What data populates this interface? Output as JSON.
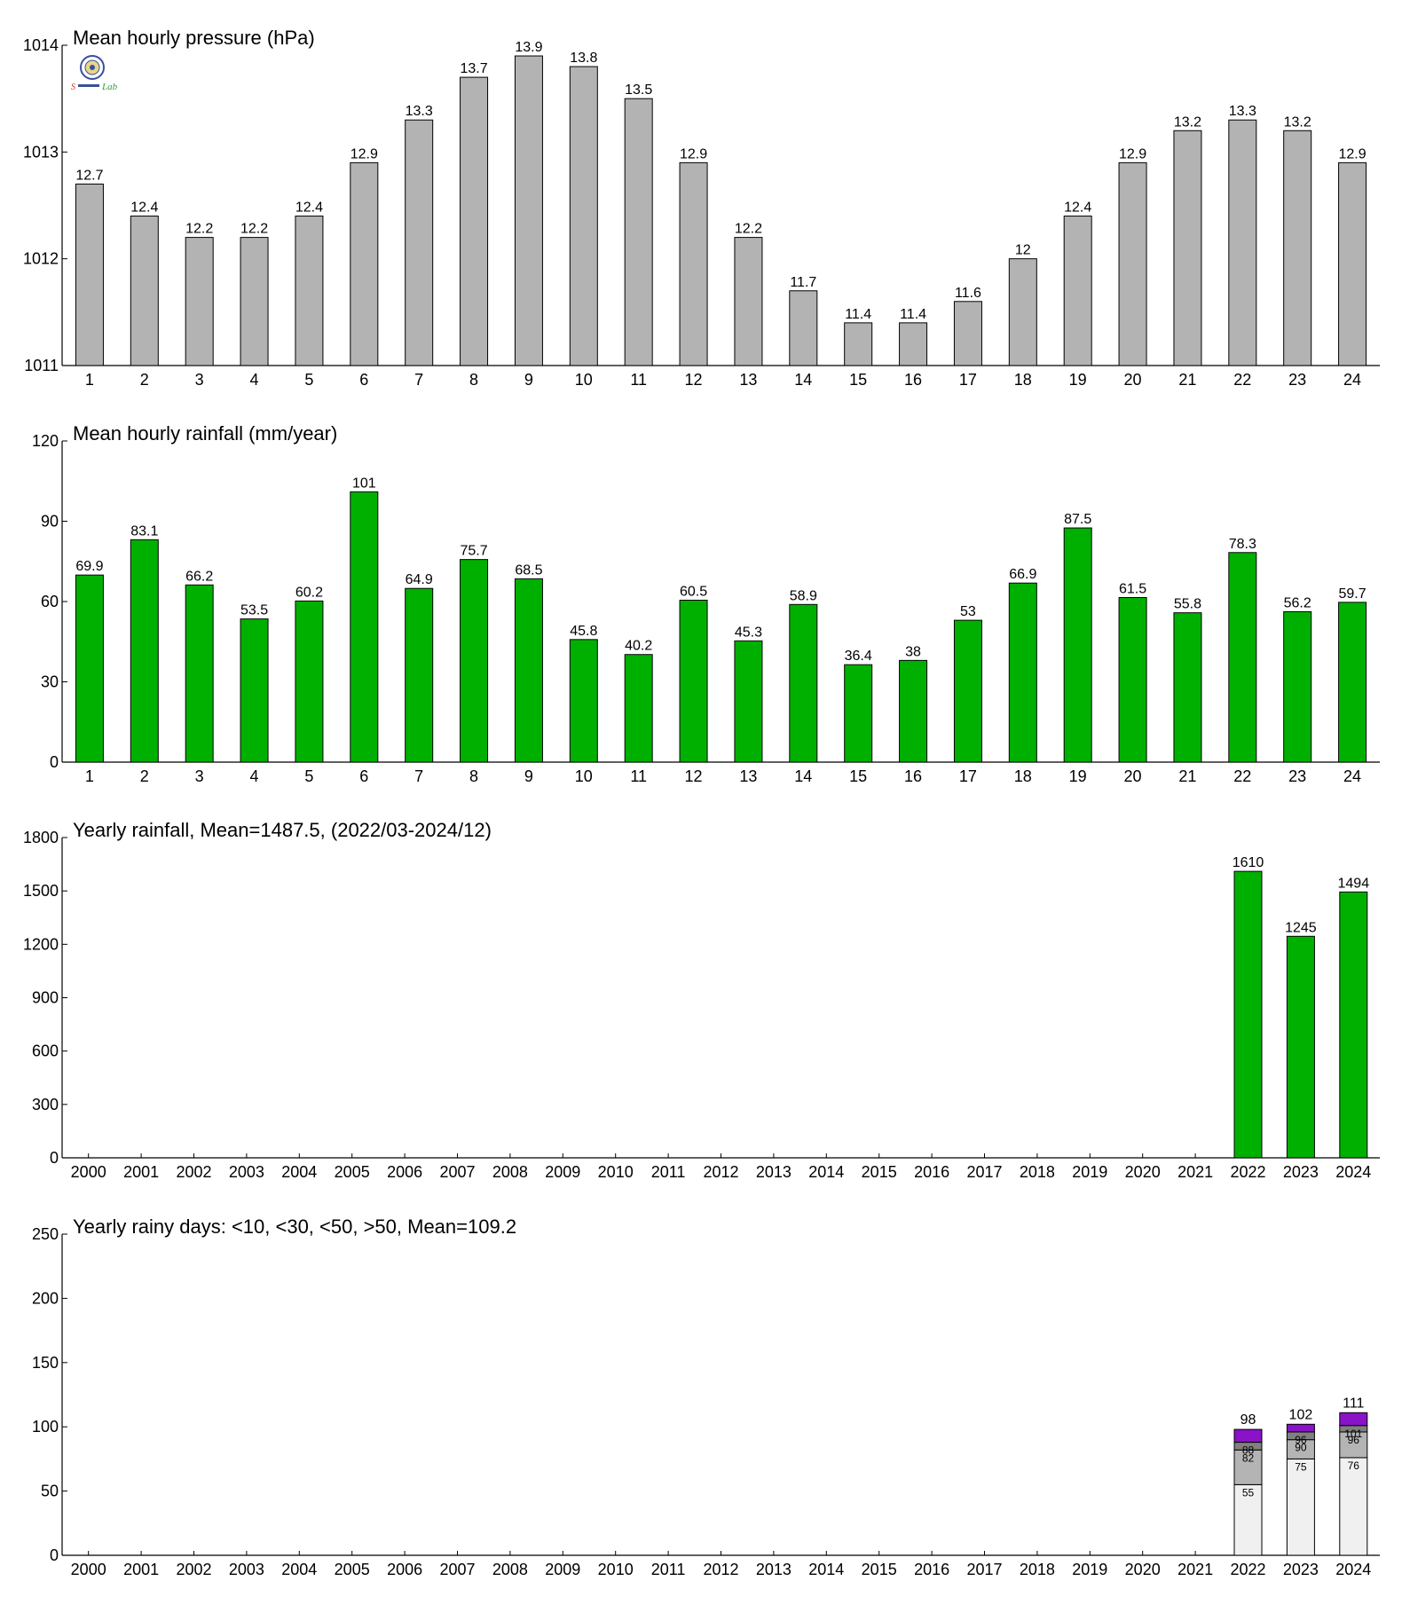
{
  "colors": {
    "pressure_bar": "#b3b3b3",
    "rainfall_bar": "#00b000",
    "days_lt10": "#f0f0f0",
    "days_lt30": "#b4b4b4",
    "days_lt50": "#808080",
    "days_gt50": "#8a12c8",
    "axis": "#000000"
  },
  "logo": {
    "icon": "seal-logo-icon",
    "text": "Lab"
  },
  "chart_data": [
    {
      "id": "pressure",
      "type": "bar",
      "title": "Mean hourly pressure (hPa)",
      "categories": [
        "1",
        "2",
        "3",
        "4",
        "5",
        "6",
        "7",
        "8",
        "9",
        "10",
        "11",
        "12",
        "13",
        "14",
        "15",
        "16",
        "17",
        "18",
        "19",
        "20",
        "21",
        "22",
        "23",
        "24"
      ],
      "values": [
        1012.7,
        1012.4,
        1012.2,
        1012.2,
        1012.4,
        1012.9,
        1013.3,
        1013.7,
        1013.9,
        1013.8,
        1013.5,
        1012.9,
        1012.2,
        1011.7,
        1011.4,
        1011.4,
        1011.6,
        1012,
        1012.4,
        1012.9,
        1013.2,
        1013.3,
        1013.2,
        1012.9
      ],
      "data_labels": [
        "12.7",
        "12.4",
        "12.2",
        "12.2",
        "12.4",
        "12.9",
        "13.3",
        "13.7",
        "13.9",
        "13.8",
        "13.5",
        "12.9",
        "12.2",
        "11.7",
        "11.4",
        "11.4",
        "11.6",
        "12",
        "12.4",
        "12.9",
        "13.2",
        "13.3",
        "13.2",
        "12.9"
      ],
      "ylim": [
        1011,
        1014
      ],
      "yticks": [
        1011,
        1012,
        1013,
        1014
      ],
      "grid": false
    },
    {
      "id": "rainfall",
      "type": "bar",
      "title": "Mean hourly rainfall (mm/year)",
      "categories": [
        "1",
        "2",
        "3",
        "4",
        "5",
        "6",
        "7",
        "8",
        "9",
        "10",
        "11",
        "12",
        "13",
        "14",
        "15",
        "16",
        "17",
        "18",
        "19",
        "20",
        "21",
        "22",
        "23",
        "24"
      ],
      "values": [
        69.9,
        83.1,
        66.2,
        53.5,
        60.2,
        101,
        64.9,
        75.7,
        68.5,
        45.8,
        40.2,
        60.5,
        45.3,
        58.9,
        36.4,
        38,
        53,
        66.9,
        87.5,
        61.5,
        55.8,
        78.3,
        56.2,
        59.7
      ],
      "data_labels": [
        "69.9",
        "83.1",
        "66.2",
        "53.5",
        "60.2",
        "101",
        "64.9",
        "75.7",
        "68.5",
        "45.8",
        "40.2",
        "60.5",
        "45.3",
        "58.9",
        "36.4",
        "38",
        "53",
        "66.9",
        "87.5",
        "61.5",
        "55.8",
        "78.3",
        "56.2",
        "59.7"
      ],
      "ylim": [
        0,
        120
      ],
      "yticks": [
        0,
        30,
        60,
        90,
        120
      ],
      "grid": false
    },
    {
      "id": "yearly_rainfall",
      "type": "bar",
      "title": "Yearly rainfall, Mean=1487.5, (2022/03-2024/12)",
      "categories": [
        "2000",
        "2001",
        "2002",
        "2003",
        "2004",
        "2005",
        "2006",
        "2007",
        "2008",
        "2009",
        "2010",
        "2011",
        "2012",
        "2013",
        "2014",
        "2015",
        "2016",
        "2017",
        "2018",
        "2019",
        "2020",
        "2021",
        "2022",
        "2023",
        "2024"
      ],
      "values": [
        null,
        null,
        null,
        null,
        null,
        null,
        null,
        null,
        null,
        null,
        null,
        null,
        null,
        null,
        null,
        null,
        null,
        null,
        null,
        null,
        null,
        null,
        1610,
        1245,
        1494
      ],
      "data_labels": [
        "",
        "",
        "",
        "",
        "",
        "",
        "",
        "",
        "",
        "",
        "",
        "",
        "",
        "",
        "",
        "",
        "",
        "",
        "",
        "",
        "",
        "",
        "1610",
        "1245",
        "1494"
      ],
      "ylim": [
        0,
        1800
      ],
      "yticks": [
        0,
        300,
        600,
        900,
        1200,
        1500,
        1800
      ],
      "grid": false
    },
    {
      "id": "rainy_days",
      "type": "bar",
      "stacked": true,
      "title": "Yearly rainy days: <10, <30, <50, >50, Mean=109.2",
      "categories": [
        "2000",
        "2001",
        "2002",
        "2003",
        "2004",
        "2005",
        "2006",
        "2007",
        "2008",
        "2009",
        "2010",
        "2011",
        "2012",
        "2013",
        "2014",
        "2015",
        "2016",
        "2017",
        "2018",
        "2019",
        "2020",
        "2021",
        "2022",
        "2023",
        "2024"
      ],
      "cumulative_series": [
        {
          "values": [
            null,
            null,
            null,
            null,
            null,
            null,
            null,
            null,
            null,
            null,
            null,
            null,
            null,
            null,
            null,
            null,
            null,
            null,
            null,
            null,
            null,
            null,
            55,
            75,
            76
          ]
        },
        {
          "values": [
            null,
            null,
            null,
            null,
            null,
            null,
            null,
            null,
            null,
            null,
            null,
            null,
            null,
            null,
            null,
            null,
            null,
            null,
            null,
            null,
            null,
            null,
            82,
            90,
            96
          ]
        },
        {
          "values": [
            null,
            null,
            null,
            null,
            null,
            null,
            null,
            null,
            null,
            null,
            null,
            null,
            null,
            null,
            null,
            null,
            null,
            null,
            null,
            null,
            null,
            null,
            88,
            96,
            101
          ]
        },
        {
          "values": [
            null,
            null,
            null,
            null,
            null,
            null,
            null,
            null,
            null,
            null,
            null,
            null,
            null,
            null,
            null,
            null,
            null,
            null,
            null,
            null,
            null,
            null,
            98,
            102,
            111
          ]
        }
      ],
      "ylim": [
        0,
        250
      ],
      "yticks": [
        0,
        50,
        100,
        150,
        200,
        250
      ],
      "grid": false
    }
  ]
}
